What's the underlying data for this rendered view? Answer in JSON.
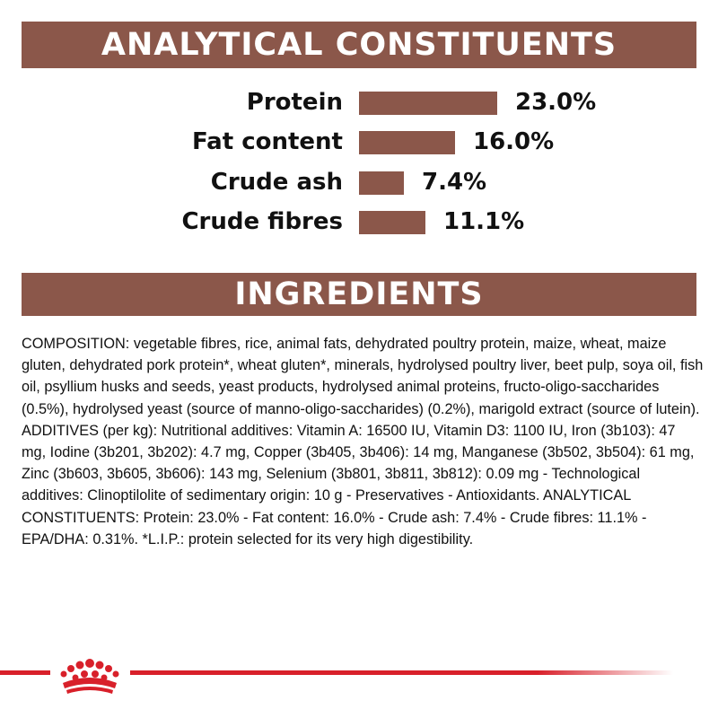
{
  "analytical_header": "ANALYTICAL CONSTITUENTS",
  "ingredients_header": "INGREDIENTS",
  "chart_data": {
    "type": "bar",
    "orientation": "horizontal",
    "categories": [
      "Protein",
      "Fat content",
      "Crude ash",
      "Crude fibres"
    ],
    "values": [
      23.0,
      16.0,
      7.4,
      11.1
    ],
    "value_labels": [
      "23.0%",
      "16.0%",
      "7.4%",
      "11.1%"
    ],
    "unit": "%",
    "bar_color": "#8b574a",
    "grid": false,
    "legend": "none"
  },
  "ingredients_text": "COMPOSITION: vegetable fibres, rice, animal fats, dehydrated poultry protein, maize, wheat, maize gluten, dehydrated pork protein*, wheat gluten*, minerals, hydrolysed poultry liver, beet pulp, soya oil, fish oil, psyllium husks and seeds, yeast products, hydrolysed animal proteins, fructo-oligo-saccharides (0.5%), hydrolysed yeast (source of manno-oligo-saccharides) (0.2%), marigold extract (source of lutein). ADDITIVES (per kg): Nutritional additives: Vitamin A: 16500 IU, Vitamin D3: 1100 IU, Iron (3b103): 47 mg, Iodine (3b201, 3b202): 4.7 mg, Copper (3b405, 3b406): 14 mg, Manganese (3b502, 3b504): 61 mg, Zinc (3b603, 3b605, 3b606): 143 mg, Selenium (3b801, 3b811, 3b812): 0.09 mg - Technological additives: Clinoptilolite of sedimentary origin: 10 g - Preservatives - Antioxidants. ANALYTICAL CONSTITUENTS: Protein: 23.0% - Fat content: 16.0% - Crude ash: 7.4% - Crude fibres: 11.1% - EPA/DHA: 0.31%. *L.I.P.: protein selected for its very high digestibility.",
  "colors": {
    "banner": "#8b574a",
    "bar": "#8b574a",
    "footer_line": "#d8202a",
    "logo": "#d8202a"
  },
  "footer": {
    "logo_icon": "crown-logo-icon"
  }
}
